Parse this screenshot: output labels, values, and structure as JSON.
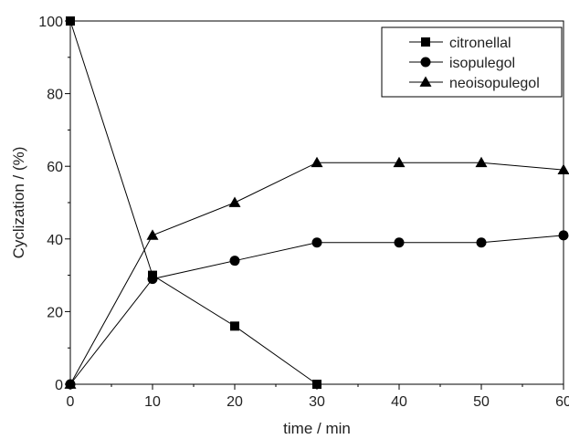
{
  "chart_data": {
    "type": "line",
    "xlabel": "time / min",
    "ylabel": "Cyclization / (%)",
    "xlim": [
      0,
      60
    ],
    "ylim": [
      0,
      100
    ],
    "xticks": [
      0,
      10,
      20,
      30,
      40,
      50,
      60
    ],
    "yticks": [
      0,
      20,
      40,
      60,
      80,
      100
    ],
    "grid": false,
    "legend_position": "top-right",
    "series": [
      {
        "name": "citronellal",
        "marker": "square",
        "color": "#000000",
        "x": [
          0,
          10,
          20,
          30
        ],
        "y": [
          100,
          30,
          16,
          0
        ]
      },
      {
        "name": "isopulegol",
        "marker": "circle",
        "color": "#000000",
        "x": [
          0,
          10,
          20,
          30,
          40,
          50,
          60
        ],
        "y": [
          0,
          29,
          34,
          39,
          39,
          39,
          41
        ]
      },
      {
        "name": "neoisopulegol",
        "marker": "triangle",
        "color": "#000000",
        "x": [
          0,
          10,
          20,
          30,
          40,
          50,
          60
        ],
        "y": [
          0,
          41,
          50,
          61,
          61,
          61,
          59
        ]
      }
    ]
  }
}
